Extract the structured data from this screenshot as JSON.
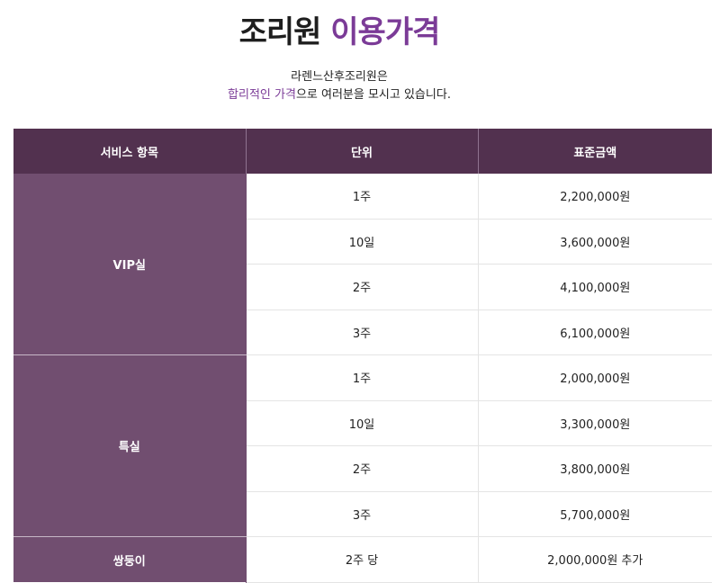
{
  "header": {
    "title_main": "조리원 ",
    "title_accent": "이용가격",
    "subtitle_line1": "라렌느산후조리원은",
    "subtitle_line2_highlight": "합리적인 가격",
    "subtitle_line2_rest": "으로 여러분을 모시고 있습니다."
  },
  "table": {
    "headers": [
      "서비스 항목",
      "단위",
      "표준금액"
    ],
    "groups": [
      {
        "category": "VIP실",
        "rows": [
          {
            "unit": "1주",
            "price": "2,200,000원"
          },
          {
            "unit": "10일",
            "price": "3,600,000원"
          },
          {
            "unit": "2주",
            "price": "4,100,000원"
          },
          {
            "unit": "3주",
            "price": "6,100,000원"
          }
        ]
      },
      {
        "category": "특실",
        "rows": [
          {
            "unit": "1주",
            "price": "2,000,000원"
          },
          {
            "unit": "10일",
            "price": "3,300,000원"
          },
          {
            "unit": "2주",
            "price": "3,800,000원"
          },
          {
            "unit": "3주",
            "price": "5,700,000원"
          }
        ]
      },
      {
        "category": "쌍둥이",
        "rows": [
          {
            "unit": "2주 당",
            "price": "2,000,000원 추가"
          }
        ]
      }
    ]
  }
}
